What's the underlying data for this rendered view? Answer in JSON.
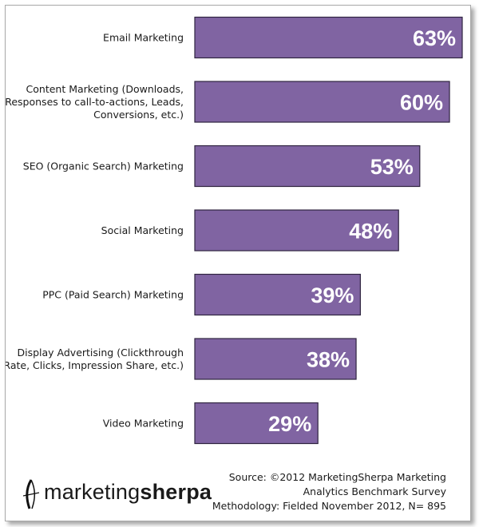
{
  "chart_data": {
    "type": "bar",
    "orientation": "horizontal",
    "categories": [
      "Email Marketing",
      "Content Marketing (Downloads, Responses to call-to-actions, Leads, Conversions, etc.)",
      "SEO (Organic Search) Marketing",
      "Social Marketing",
      "PPC (Paid Search) Marketing",
      "Display Advertising (Clickthrough Rate, Clicks, Impression Share, etc.)",
      "Video Marketing"
    ],
    "category_lines": [
      [
        "Email Marketing"
      ],
      [
        "Content Marketing (Downloads,",
        "Responses to call-to-actions, Leads,",
        "Conversions, etc.)"
      ],
      [
        "SEO (Organic Search) Marketing"
      ],
      [
        "Social Marketing"
      ],
      [
        "PPC (Paid Search) Marketing"
      ],
      [
        "Display Advertising (Clickthrough",
        "Rate, Clicks, Impression Share, etc.)"
      ],
      [
        "Video Marketing"
      ]
    ],
    "values": [
      63,
      60,
      53,
      48,
      39,
      38,
      29
    ],
    "value_labels": [
      "63%",
      "60%",
      "53%",
      "48%",
      "39%",
      "38%",
      "29%"
    ],
    "xlim": [
      0,
      63
    ],
    "bar_color": "#8064a2",
    "grid": false,
    "legend": "none"
  },
  "footer": {
    "source_lines": [
      "Source: ©2012 MarketingSherpa Marketing",
      "Analytics Benchmark Survey",
      "Methodology: Fielded November 2012, N= 895"
    ]
  },
  "logo": {
    "text_regular": "marketing",
    "text_bold": "sherpa",
    "icon": "sherpa-mountain-icon"
  }
}
